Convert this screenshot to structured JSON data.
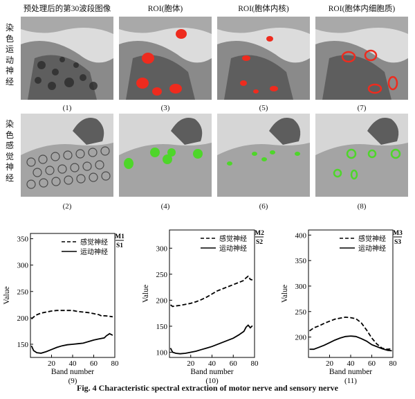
{
  "figure": {
    "column_titles": [
      "预处理后的第30波段图像",
      "ROI(胞体)",
      "ROI(胞体内核)",
      "ROI(胞体内细胞质)"
    ],
    "row_labels": [
      "染色运动神经",
      "染色感觉神经"
    ],
    "panel_labels": [
      "(1)",
      "(3)",
      "(5)",
      "(7)",
      "(2)",
      "(4)",
      "(6)",
      "(8)"
    ],
    "caption": "Fig. 4    Characteristic spectral extraction of motor nerve and sensory nerve",
    "colors": {
      "motor_roi": "#ee2b1e",
      "sensory_roi": "#4ed62a"
    }
  },
  "chart_data": [
    {
      "type": "line",
      "panel_label": "(9)",
      "corner_tag": [
        "M1",
        "S1"
      ],
      "xlabel": "Band number",
      "ylabel": "Value",
      "xlim": [
        0,
        80
      ],
      "ylim": [
        125,
        360
      ],
      "xticks": [
        20,
        40,
        60,
        80
      ],
      "yticks": [
        150,
        200,
        250,
        300,
        350
      ],
      "legend_position": "top",
      "series": [
        {
          "name": "感觉神经",
          "style": "dashed",
          "x": [
            1,
            5,
            10,
            15,
            20,
            25,
            30,
            35,
            40,
            45,
            50,
            55,
            60,
            65,
            68,
            70,
            75,
            78
          ],
          "y": [
            198,
            205,
            209,
            211,
            213,
            214,
            214,
            214,
            214,
            212,
            211,
            210,
            208,
            206,
            203,
            204,
            203,
            202
          ]
        },
        {
          "name": "运动神经",
          "style": "solid",
          "x": [
            1,
            3,
            6,
            10,
            15,
            20,
            25,
            30,
            35,
            40,
            45,
            50,
            55,
            60,
            65,
            70,
            72,
            75,
            78
          ],
          "y": [
            147,
            138,
            134,
            133,
            136,
            140,
            144,
            147,
            149,
            150,
            151,
            152,
            155,
            158,
            160,
            162,
            166,
            170,
            167
          ]
        }
      ]
    },
    {
      "type": "line",
      "panel_label": "(10)",
      "corner_tag": [
        "M2",
        "S2"
      ],
      "xlabel": "Band number",
      "ylabel": "Value",
      "xlim": [
        0,
        80
      ],
      "ylim": [
        90,
        335
      ],
      "xticks": [
        20,
        40,
        60,
        80
      ],
      "yticks": [
        100,
        150,
        200,
        250,
        300
      ],
      "legend_position": "top",
      "series": [
        {
          "name": "感觉神经",
          "style": "dashed",
          "x": [
            1,
            3,
            6,
            10,
            15,
            20,
            25,
            30,
            35,
            40,
            45,
            50,
            55,
            60,
            65,
            70,
            72,
            74,
            76,
            78
          ],
          "y": [
            191,
            188,
            189,
            190,
            192,
            194,
            197,
            201,
            206,
            212,
            218,
            222,
            226,
            230,
            234,
            238,
            243,
            246,
            240,
            239
          ]
        },
        {
          "name": "运动神经",
          "style": "solid",
          "x": [
            1,
            3,
            6,
            10,
            15,
            20,
            25,
            30,
            35,
            40,
            45,
            50,
            55,
            60,
            65,
            70,
            72,
            74,
            76,
            78
          ],
          "y": [
            108,
            100,
            98,
            97,
            98,
            100,
            102,
            105,
            108,
            111,
            115,
            119,
            123,
            127,
            133,
            140,
            148,
            152,
            147,
            151
          ]
        }
      ]
    },
    {
      "type": "line",
      "panel_label": "(11)",
      "corner_tag": [
        "M3",
        "S3"
      ],
      "xlabel": "Band number",
      "ylabel": "Value",
      "xlim": [
        0,
        80
      ],
      "ylim": [
        160,
        410
      ],
      "xticks": [
        20,
        40,
        60,
        80
      ],
      "yticks": [
        200,
        250,
        300,
        350,
        400
      ],
      "legend_position": "top",
      "series": [
        {
          "name": "感觉神经",
          "style": "dashed",
          "x": [
            1,
            5,
            10,
            15,
            20,
            25,
            30,
            35,
            40,
            45,
            50,
            55,
            60,
            65,
            70,
            75,
            79
          ],
          "y": [
            212,
            218,
            222,
            227,
            231,
            235,
            237,
            239,
            238,
            236,
            228,
            214,
            198,
            186,
            178,
            176,
            177
          ]
        },
        {
          "name": "运动神经",
          "style": "solid",
          "x": [
            1,
            5,
            10,
            15,
            20,
            25,
            30,
            35,
            40,
            45,
            50,
            55,
            60,
            65,
            70,
            75,
            79
          ],
          "y": [
            176,
            176,
            180,
            184,
            189,
            194,
            198,
            201,
            202,
            201,
            197,
            192,
            185,
            181,
            177,
            174,
            173
          ]
        }
      ]
    }
  ]
}
